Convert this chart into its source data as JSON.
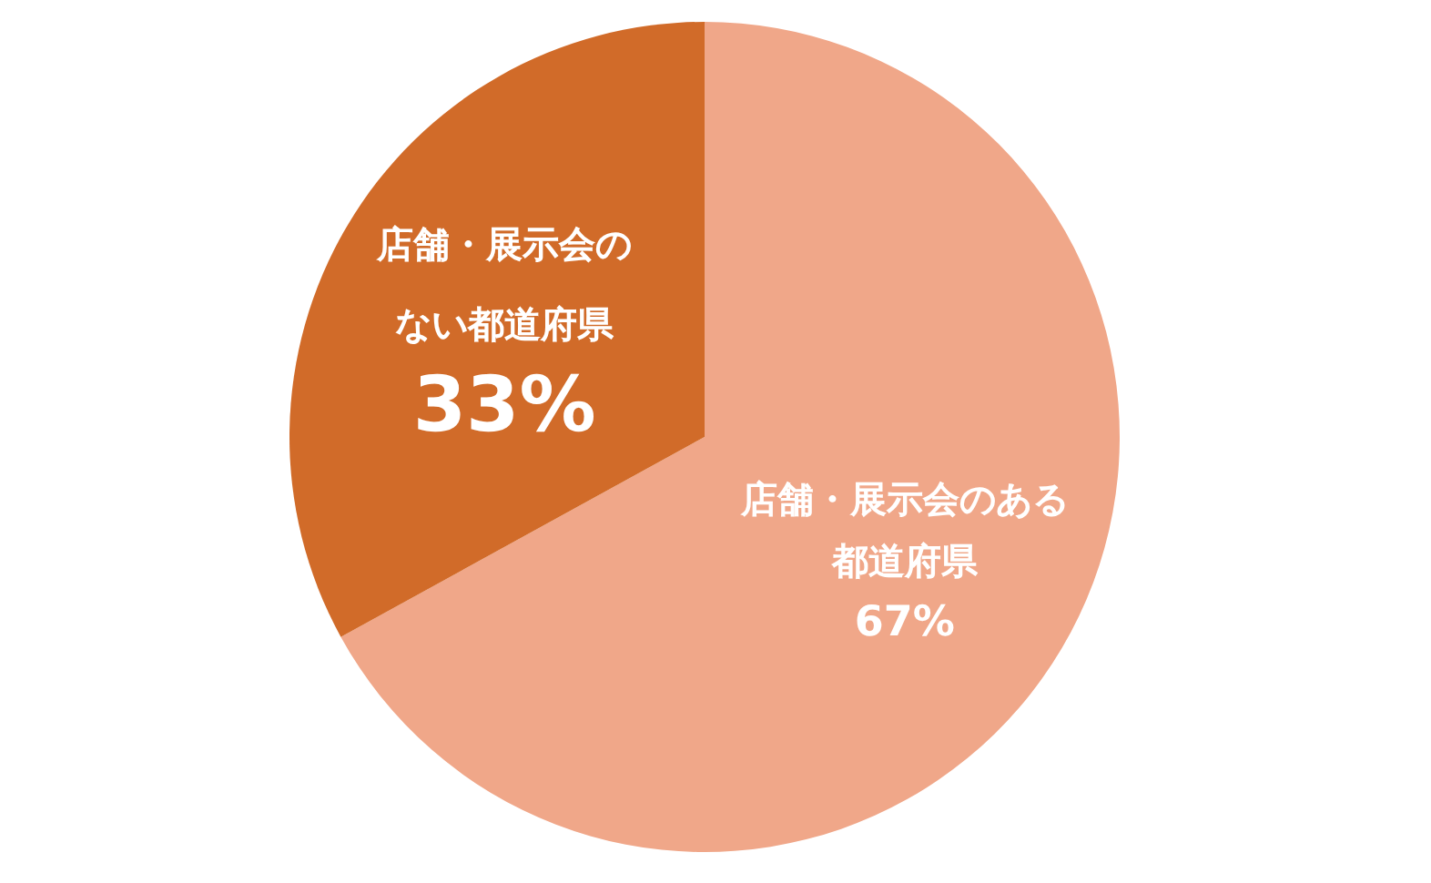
{
  "chart_data": {
    "type": "pie",
    "categories": [
      "店舗・展示会のある都道府県",
      "店舗・展示会のない都道府県"
    ],
    "values": [
      67,
      33
    ],
    "colors": [
      "#F0A789",
      "#D16B29"
    ],
    "value_labels": [
      "67%",
      "33%"
    ]
  }
}
